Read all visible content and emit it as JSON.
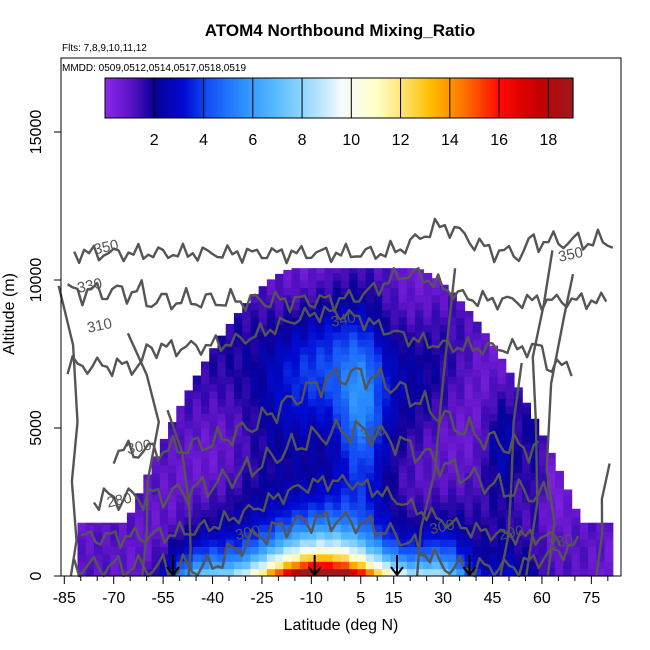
{
  "chart_data": {
    "type": "heatmap",
    "title": "ATOM4 Northbound Mixing_Ratio",
    "flights_label": "Flts: 7,8,9,10,11,12",
    "dates_label": "MMDD: 0509,0512,0514,0517,0518,0519",
    "xlabel": "Latitude (deg N)",
    "ylabel": "Altitude (m)",
    "xlim": [
      -86,
      84
    ],
    "ylim": [
      0,
      17500
    ],
    "x_ticks": [
      -85,
      -70,
      -55,
      -40,
      -25,
      -10,
      5,
      15,
      30,
      45,
      60,
      75
    ],
    "x_minor_ticks": [
      -80,
      -75,
      -65,
      -60,
      -50,
      -45,
      -35,
      -30,
      -20,
      -15,
      -5,
      0,
      10,
      20,
      25,
      35,
      40,
      50,
      55,
      65,
      70,
      80
    ],
    "y_ticks": [
      0,
      5000,
      10000,
      15000
    ],
    "colorbar": {
      "min": 0,
      "max": 19,
      "ticks": [
        2,
        4,
        6,
        8,
        10,
        12,
        14,
        16,
        18
      ]
    },
    "arrows_latitude": [
      -52,
      -9,
      16,
      38
    ],
    "contour_labels": [
      {
        "text": "350",
        "lat": -72,
        "alt": 10950
      },
      {
        "text": "330",
        "lat": -77,
        "alt": 9650
      },
      {
        "text": "310",
        "lat": -74,
        "alt": 8300
      },
      {
        "text": "340",
        "lat": 0,
        "alt": 8500
      },
      {
        "text": "350",
        "lat": 69,
        "alt": 10700
      },
      {
        "text": "300",
        "lat": -62,
        "alt": 4200
      },
      {
        "text": "320",
        "lat": 9,
        "alt": 4700
      },
      {
        "text": "280",
        "lat": -68,
        "alt": 2400
      },
      {
        "text": "300",
        "lat": -29,
        "alt": 1300
      },
      {
        "text": "300",
        "lat": 30,
        "alt": 1500
      },
      {
        "text": "290",
        "lat": 51,
        "alt": 1300
      },
      {
        "text": "280",
        "lat": 66,
        "alt": 1000
      }
    ]
  },
  "colors": {
    "contour": "#555555",
    "frame": "#000000"
  }
}
